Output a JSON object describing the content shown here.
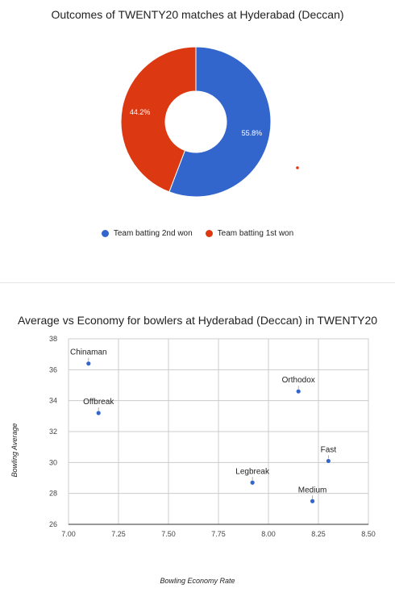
{
  "chart_data": [
    {
      "type": "pie",
      "donut": true,
      "title": "Outcomes of TWENTY20 matches at Hyderabad (Deccan)",
      "slices": [
        {
          "label": "Team batting 2nd won",
          "value": 55.8,
          "value_label": "55.8%",
          "color": "#3366cc"
        },
        {
          "label": "Team batting 1st won",
          "value": 44.2,
          "value_label": "44.2%",
          "color": "#dc3912"
        }
      ],
      "legend_position": "bottom"
    },
    {
      "type": "scatter",
      "title": "Average vs Economy for bowlers at Hyderabad (Deccan) in TWENTY20",
      "xlabel": "Bowling Economy Rate",
      "ylabel": "Bowling Average",
      "xlim": [
        7.0,
        8.5
      ],
      "ylim": [
        26,
        38
      ],
      "xticks": [
        "7.00",
        "7.25",
        "7.50",
        "7.75",
        "8.00",
        "8.25",
        "8.50"
      ],
      "yticks": [
        "26",
        "28",
        "30",
        "32",
        "34",
        "36",
        "38"
      ],
      "grid": true,
      "point_color": "#3366cc",
      "points": [
        {
          "label": "Chinaman",
          "x": 7.1,
          "y": 36.4
        },
        {
          "label": "Offbreak",
          "x": 7.15,
          "y": 33.2
        },
        {
          "label": "Orthodox",
          "x": 8.15,
          "y": 34.6
        },
        {
          "label": "Fast",
          "x": 8.3,
          "y": 30.1
        },
        {
          "label": "Legbreak",
          "x": 7.92,
          "y": 28.7
        },
        {
          "label": "Medium",
          "x": 8.22,
          "y": 27.5
        }
      ]
    }
  ]
}
